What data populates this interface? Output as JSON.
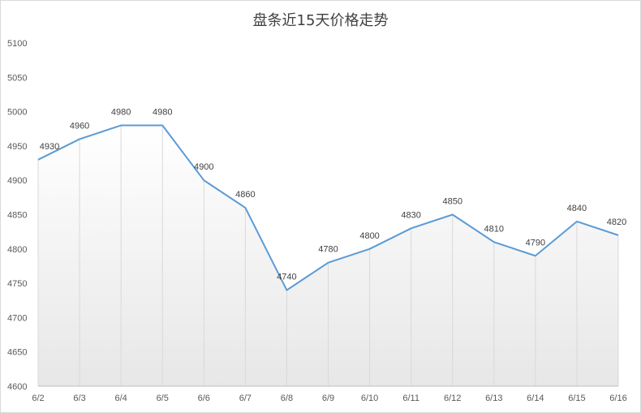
{
  "chart_data": {
    "type": "area",
    "title": "盘条近15天价格走势",
    "categories": [
      "6/2",
      "6/3",
      "6/4",
      "6/5",
      "6/6",
      "6/7",
      "6/8",
      "6/9",
      "6/10",
      "6/11",
      "6/12",
      "6/13",
      "6/14",
      "6/15",
      "6/16"
    ],
    "values": [
      4930,
      4960,
      4980,
      4980,
      4900,
      4860,
      4740,
      4780,
      4800,
      4830,
      4850,
      4810,
      4790,
      4840,
      4820
    ],
    "ylim": [
      4600,
      5100
    ],
    "yticks": [
      "5100",
      "5050",
      "5000",
      "4950",
      "4900",
      "4850",
      "4800",
      "4750",
      "4700",
      "4650",
      "4600"
    ],
    "line_color": "#5b9bd5",
    "fill": "white-to-light-gray gradient",
    "grid": "vertical drop lines at each category",
    "legend": "none"
  }
}
